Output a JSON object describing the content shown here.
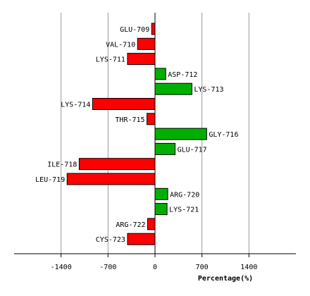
{
  "chart_data": {
    "type": "bar",
    "orientation": "horizontal",
    "categories": [
      "GLU-709",
      "VAL-710",
      "LYS-711",
      "ASP-712",
      "LYS-713",
      "LYS-714",
      "THR-715",
      "GLY-716",
      "GLU-717",
      "ILE-718",
      "LEU-719",
      "ARG-720",
      "LYS-721",
      "ARG-722",
      "CYS-723"
    ],
    "values": [
      -50,
      -260,
      -410,
      160,
      550,
      -930,
      -120,
      770,
      300,
      -1130,
      -1310,
      190,
      180,
      -110,
      -410
    ],
    "xlabel": "Percentage(%)",
    "ylabel": "",
    "title": "",
    "xlim": [
      -2100,
      2100
    ],
    "xticks": [
      -1400,
      -700,
      0,
      700,
      1400
    ],
    "xtick_labels": [
      "-1400",
      "-700",
      "0",
      "700",
      "1400"
    ],
    "grid": "vertical",
    "colors": {
      "positive": "#00b000",
      "negative": "#ff0000",
      "grid": "#999999",
      "axis": "#000000"
    }
  }
}
